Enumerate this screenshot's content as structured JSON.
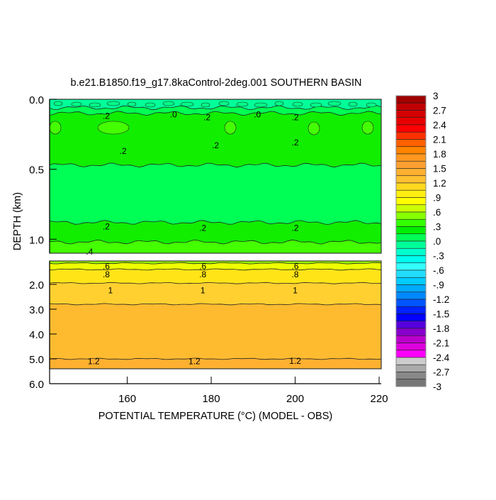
{
  "chart_data": {
    "type": "heatmap",
    "subtype": "filled-contour",
    "title": "b.e21.B1850.f19_g17.8kaControl-2deg.001 SOUTHERN BASIN",
    "xlabel": "POTENTIAL TEMPERATURE (°C) (MODEL - OBS)",
    "ylabel": "DEPTH (km)",
    "xlim": [
      141.5,
      220.5
    ],
    "x_ticks": [
      "160",
      "180",
      "200",
      "220"
    ],
    "x_tick_values": [
      160,
      180,
      200,
      220
    ],
    "panels": [
      {
        "ylim": [
          0.0,
          1.1
        ],
        "y_ticks": [
          "0.0",
          "0.5",
          "1.0"
        ],
        "y_tick_values": [
          0.0,
          0.5,
          1.0
        ],
        "bands": [
          {
            "top": 0.0,
            "bottom": 0.06,
            "value": -0.05,
            "color": "#00ff99"
          },
          {
            "top": 0.06,
            "bottom": 0.1,
            "value": 0.05,
            "color": "#00ff55"
          },
          {
            "top": 0.1,
            "bottom": 0.47,
            "value": 0.2,
            "color": "#11ee00"
          },
          {
            "top": 0.47,
            "bottom": 0.88,
            "value": 0.1,
            "color": "#00ff55"
          },
          {
            "top": 0.88,
            "bottom": 1.02,
            "value": 0.2,
            "color": "#11ee00"
          },
          {
            "top": 1.02,
            "bottom": 1.1,
            "value": 0.35,
            "color": "#44ff00"
          }
        ],
        "labels": [
          {
            "x": 155,
            "depth": 0.12,
            "text": ".2"
          },
          {
            "x": 171,
            "depth": 0.11,
            "text": ".0"
          },
          {
            "x": 179,
            "depth": 0.13,
            "text": ".2"
          },
          {
            "x": 191,
            "depth": 0.11,
            "text": ".0"
          },
          {
            "x": 200,
            "depth": 0.13,
            "text": ".2"
          },
          {
            "x": 159,
            "depth": 0.37,
            "text": ".2"
          },
          {
            "x": 181,
            "depth": 0.33,
            "text": ".2"
          },
          {
            "x": 200,
            "depth": 0.31,
            "text": ".2"
          },
          {
            "x": 155,
            "depth": 0.91,
            "text": ".2"
          },
          {
            "x": 178,
            "depth": 0.92,
            "text": ".2"
          },
          {
            "x": 200,
            "depth": 0.92,
            "text": ".2"
          },
          {
            "x": 151,
            "depth": 1.09,
            "text": ".4"
          }
        ]
      },
      {
        "ylim": [
          1.06,
          6.0
        ],
        "data_bottom": 5.4,
        "y_ticks": [
          "2.0",
          "3.0",
          "4.0",
          "5.0",
          "6.0"
        ],
        "y_tick_values": [
          2.0,
          3.0,
          4.0,
          5.0,
          6.0
        ],
        "bands": [
          {
            "top": 1.06,
            "bottom": 1.15,
            "value": 0.45,
            "color": "#99ff00"
          },
          {
            "top": 1.15,
            "bottom": 1.4,
            "value": 0.55,
            "color": "#eeff00"
          },
          {
            "top": 1.4,
            "bottom": 1.95,
            "value": 0.75,
            "color": "#ffe418"
          },
          {
            "top": 1.95,
            "bottom": 2.8,
            "value": 0.95,
            "color": "#ffd030"
          },
          {
            "top": 2.8,
            "bottom": 5.0,
            "value": 1.1,
            "color": "#ffbb30"
          },
          {
            "top": 5.0,
            "bottom": 5.4,
            "value": 1.25,
            "color": "#ffb030"
          }
        ],
        "contours": [
          1.28,
          1.4,
          1.6,
          1.95,
          2.8,
          5.0
        ],
        "labels": [
          {
            "x": 155,
            "depth": 1.28,
            "text": ".6"
          },
          {
            "x": 178,
            "depth": 1.28,
            "text": ".6"
          },
          {
            "x": 200,
            "depth": 1.28,
            "text": ".6"
          },
          {
            "x": 155,
            "depth": 1.6,
            "text": ".8"
          },
          {
            "x": 178,
            "depth": 1.6,
            "text": ".8"
          },
          {
            "x": 200,
            "depth": 1.6,
            "text": ".8"
          },
          {
            "x": 156,
            "depth": 2.25,
            "text": "1"
          },
          {
            "x": 178,
            "depth": 2.25,
            "text": "1"
          },
          {
            "x": 200,
            "depth": 2.25,
            "text": "1"
          },
          {
            "x": 152,
            "depth": 5.1,
            "text": "1.2"
          },
          {
            "x": 176,
            "depth": 5.1,
            "text": "1.2"
          },
          {
            "x": 200,
            "depth": 5.08,
            "text": "1.2"
          }
        ]
      }
    ],
    "colorbar": {
      "range": [
        -3,
        3
      ],
      "step": 0.15,
      "tick_labels": [
        "3",
        "2.7",
        "2.4",
        "2.1",
        "1.8",
        "1.5",
        "1.2",
        ".9",
        ".6",
        ".3",
        ".0",
        "-.3",
        "-.6",
        "-.9",
        "-1.2",
        "-1.5",
        "-1.8",
        "-2.1",
        "-2.4",
        "-2.7",
        "-3"
      ],
      "colors": [
        "#a00000",
        "#c00000",
        "#d40000",
        "#e80000",
        "#ff0000",
        "#ff3000",
        "#ff6000",
        "#ff8400",
        "#ff9820",
        "#ffa030",
        "#ffb030",
        "#ffc030",
        "#ffd820",
        "#ffee10",
        "#ffff00",
        "#ccff00",
        "#88ff00",
        "#33ff00",
        "#00ee00",
        "#00ff55",
        "#00ff99",
        "#00ffcc",
        "#00ffee",
        "#33ffff",
        "#22ddff",
        "#00ccff",
        "#00aaff",
        "#0088ff",
        "#0055ff",
        "#0022ff",
        "#0000ff",
        "#5500dd",
        "#8800cc",
        "#bb00cc",
        "#dd00dd",
        "#ff00ff",
        "#cccccc",
        "#aaaaaa",
        "#888888",
        "#777777"
      ]
    }
  }
}
